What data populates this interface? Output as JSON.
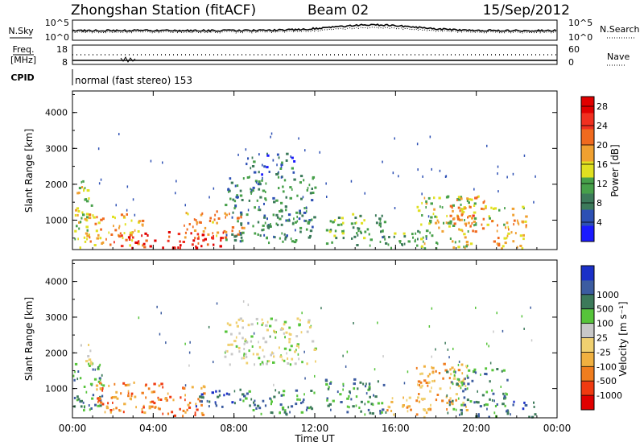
{
  "header": {
    "title": "Zhongshan Station (fitACF)",
    "beam": "Beam 02",
    "date": "15/Sep/2012"
  },
  "status_panels": {
    "nsky_label": "N.Sky",
    "nsky_ticks": [
      "10^5",
      "10^0"
    ],
    "nsearch_label": "N.Search",
    "nsearch_ticks": [
      "10^5",
      "10^0"
    ],
    "freq_label": "Freq.",
    "freq_unit": "[MHz]",
    "freq_ticks": [
      "18",
      "8"
    ],
    "nave_label": "Nave",
    "nave_ticks": [
      "60",
      "0"
    ],
    "cpid_label": "CPID",
    "cpid_value": "normal (fast stereo) 153"
  },
  "colors": {
    "power": [
      "#1a1aff",
      "#2d50b4",
      "#3c7a5a",
      "#47a04a",
      "#e0e020",
      "#f0a030",
      "#f06a1e",
      "#f03020",
      "#e00000"
    ],
    "velocity": [
      "#e00000",
      "#f03a10",
      "#f07d1e",
      "#f0b040",
      "#f0d070",
      "#c8c8c8",
      "#56c43a",
      "#3c7a5a",
      "#3c5ca0",
      "#1a30c8"
    ]
  },
  "chart_data": [
    {
      "type": "heatmap",
      "panel": "power",
      "xlabel": "Time UT",
      "ylabel": "Slant Range [km]",
      "x_ticks": [
        "00:00",
        "04:00",
        "08:00",
        "12:00",
        "16:00",
        "20:00",
        "00:00"
      ],
      "y_ticks": [
        "1000",
        "2000",
        "3000",
        "4000"
      ],
      "x_range_hours": [
        0,
        24
      ],
      "y_range_km": [
        180,
        4600
      ],
      "colorbar_label": "Power [dB]",
      "colorbar_ticks": [
        "4",
        "8",
        "12",
        "16",
        "20",
        "24",
        "28"
      ],
      "colorbar_range": [
        0,
        30
      ],
      "regions": [
        {
          "t0": 0.0,
          "t1": 1.0,
          "r0": 250,
          "r1": 2200,
          "level": 14
        },
        {
          "t0": 0.5,
          "t1": 3.5,
          "r0": 300,
          "r1": 1200,
          "level": 18
        },
        {
          "t0": 2.0,
          "t1": 7.5,
          "r0": 250,
          "r1": 700,
          "level": 26
        },
        {
          "t0": 5.5,
          "t1": 8.5,
          "r0": 500,
          "r1": 1300,
          "level": 20
        },
        {
          "t0": 7.5,
          "t1": 12.0,
          "r0": 400,
          "r1": 2300,
          "level": 9
        },
        {
          "t0": 8.5,
          "t1": 11.0,
          "r0": 2300,
          "r1": 2900,
          "level": 6
        },
        {
          "t0": 12.5,
          "t1": 15.5,
          "r0": 300,
          "r1": 1200,
          "level": 11
        },
        {
          "t0": 15.0,
          "t1": 17.5,
          "r0": 200,
          "r1": 800,
          "level": 10
        },
        {
          "t0": 17.0,
          "t1": 20.0,
          "r0": 200,
          "r1": 1700,
          "level": 14
        },
        {
          "t0": 18.5,
          "t1": 20.5,
          "r0": 700,
          "r1": 1700,
          "level": 20
        },
        {
          "t0": 20.5,
          "t1": 22.5,
          "r0": 200,
          "r1": 1400,
          "level": 17
        }
      ]
    },
    {
      "type": "heatmap",
      "panel": "velocity",
      "xlabel": "Time UT",
      "ylabel": "Slant Range [km]",
      "x_ticks": [
        "00:00",
        "04:00",
        "08:00",
        "12:00",
        "16:00",
        "20:00",
        "00:00"
      ],
      "y_ticks": [
        "1000",
        "2000",
        "3000",
        "4000"
      ],
      "x_range_hours": [
        0,
        24
      ],
      "y_range_km": [
        180,
        4600
      ],
      "colorbar_label": "Velocity [m s⁻¹]",
      "colorbar_ticks": [
        "-1000",
        "-500",
        "-100",
        "-25",
        "25",
        "100",
        "500",
        "1000"
      ],
      "regions": [
        {
          "t0": 0.0,
          "t1": 1.0,
          "r0": 1700,
          "r1": 2300,
          "level": 5
        },
        {
          "t0": 0.0,
          "t1": 1.5,
          "r0": 300,
          "r1": 1700,
          "level": 7
        },
        {
          "t0": 1.0,
          "t1": 6.5,
          "r0": 250,
          "r1": 1200,
          "level": 2
        },
        {
          "t0": 6.0,
          "t1": 8.0,
          "r0": 500,
          "r1": 1000,
          "level": 8
        },
        {
          "t0": 7.5,
          "t1": 12.0,
          "r0": 1700,
          "r1": 3000,
          "level": 5
        },
        {
          "t0": 8.0,
          "t1": 12.0,
          "r0": 300,
          "r1": 1000,
          "level": 7
        },
        {
          "t0": 12.5,
          "t1": 15.5,
          "r0": 300,
          "r1": 1300,
          "level": 7
        },
        {
          "t0": 15.5,
          "t1": 17.5,
          "r0": 200,
          "r1": 800,
          "level": 3
        },
        {
          "t0": 17.0,
          "t1": 19.5,
          "r0": 400,
          "r1": 1800,
          "level": 3
        },
        {
          "t0": 18.5,
          "t1": 21.5,
          "r0": 200,
          "r1": 1600,
          "level": 7
        },
        {
          "t0": 21.5,
          "t1": 23.0,
          "r0": 200,
          "r1": 700,
          "level": 8
        }
      ]
    }
  ]
}
